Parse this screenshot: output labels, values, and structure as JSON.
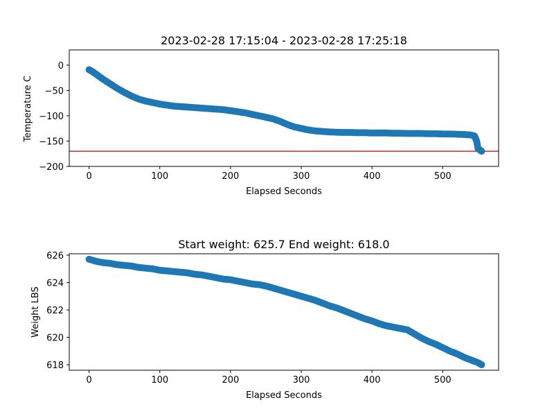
{
  "chart_data": [
    {
      "type": "scatter",
      "title": "2023-02-28 17:15:04 - 2023-02-28 17:25:18",
      "xlabel": "Elapsed Seconds",
      "ylabel": "Temperature C",
      "xlim": [
        -28,
        579
      ],
      "ylim": [
        -200,
        30
      ],
      "xticks": [
        0,
        100,
        200,
        300,
        400,
        500
      ],
      "yticks": [
        0,
        -50,
        -100,
        -150,
        -200
      ],
      "xtick_labels": [
        "0",
        "100",
        "200",
        "300",
        "400",
        "500"
      ],
      "ytick_labels": [
        "0",
        "−50",
        "−100",
        "−150",
        "−200"
      ],
      "grid": false,
      "marker_color": "#1f77b4",
      "reference_line": {
        "y": -170,
        "color": "#d62728"
      },
      "x": [
        0,
        5,
        10,
        15,
        20,
        30,
        40,
        50,
        60,
        70,
        80,
        90,
        100,
        110,
        120,
        130,
        140,
        150,
        160,
        170,
        180,
        190,
        200,
        210,
        220,
        230,
        240,
        250,
        260,
        270,
        280,
        290,
        300,
        310,
        320,
        330,
        340,
        350,
        360,
        370,
        380,
        390,
        400,
        410,
        420,
        430,
        440,
        450,
        460,
        470,
        480,
        490,
        500,
        510,
        520,
        530,
        540,
        545,
        548,
        550,
        553,
        555
      ],
      "y": [
        -9,
        -13,
        -18,
        -23,
        -28,
        -37,
        -46,
        -54,
        -61,
        -67,
        -71,
        -74,
        -77,
        -79,
        -81,
        -82,
        -83,
        -84,
        -85,
        -86,
        -87,
        -88,
        -90,
        -92,
        -94,
        -97,
        -100,
        -103,
        -106,
        -111,
        -117,
        -122,
        -125,
        -128,
        -130,
        -131,
        -132,
        -132.5,
        -133,
        -133,
        -133.5,
        -133.5,
        -134,
        -134,
        -134,
        -134.5,
        -134.5,
        -135,
        -135,
        -135,
        -135.5,
        -135.5,
        -136,
        -136,
        -136.5,
        -137,
        -138,
        -140,
        -150,
        -165,
        -168,
        -170
      ]
    },
    {
      "type": "scatter",
      "title": "Start weight: 625.7 End weight: 618.0",
      "xlabel": "Elapsed Seconds",
      "ylabel": "Weight LBS",
      "xlim": [
        -28,
        579
      ],
      "ylim": [
        617.6,
        626.1
      ],
      "xticks": [
        0,
        100,
        200,
        300,
        400,
        500
      ],
      "yticks": [
        618,
        620,
        622,
        624,
        626
      ],
      "xtick_labels": [
        "0",
        "100",
        "200",
        "300",
        "400",
        "500"
      ],
      "ytick_labels": [
        "618",
        "620",
        "622",
        "624",
        "626"
      ],
      "grid": false,
      "marker_color": "#1f77b4",
      "x": [
        0,
        10,
        20,
        30,
        40,
        50,
        60,
        70,
        80,
        90,
        100,
        110,
        120,
        130,
        140,
        150,
        160,
        170,
        180,
        190,
        200,
        210,
        220,
        230,
        240,
        250,
        260,
        270,
        280,
        290,
        300,
        310,
        320,
        330,
        340,
        350,
        360,
        370,
        380,
        390,
        400,
        410,
        420,
        430,
        440,
        450,
        460,
        470,
        480,
        490,
        500,
        510,
        520,
        530,
        540,
        550,
        555
      ],
      "y": [
        625.7,
        625.55,
        625.45,
        625.4,
        625.3,
        625.25,
        625.2,
        625.1,
        625.05,
        625.0,
        624.9,
        624.85,
        624.8,
        624.75,
        624.7,
        624.6,
        624.55,
        624.45,
        624.35,
        624.25,
        624.2,
        624.1,
        624.0,
        623.9,
        623.85,
        623.75,
        623.6,
        623.45,
        623.3,
        623.15,
        623.0,
        622.85,
        622.7,
        622.5,
        622.3,
        622.15,
        621.95,
        621.75,
        621.55,
        621.35,
        621.2,
        621.0,
        620.85,
        620.75,
        620.65,
        620.55,
        620.25,
        619.95,
        619.7,
        619.5,
        619.25,
        619.0,
        618.8,
        618.55,
        618.35,
        618.15,
        618.0
      ]
    }
  ]
}
